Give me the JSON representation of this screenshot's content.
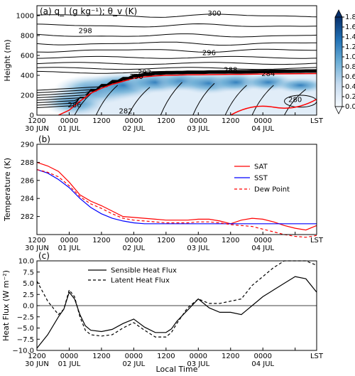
{
  "chart_data": [
    {
      "type": "heatmap",
      "panel": "a",
      "title": "(a) q_l (g kg⁻¹); θ_v (K)",
      "ylabel": "Height (m)",
      "ylim": [
        0,
        1100
      ],
      "yticks": [
        0,
        200,
        400,
        600,
        800,
        1000
      ],
      "xlim": [
        0,
        104
      ],
      "xtick_positions": [
        0,
        12,
        24,
        36,
        48,
        60,
        72,
        84,
        96,
        104
      ],
      "xtick_labels": [
        "1200\n30 JUN",
        "0000\n01 JUL",
        "1200",
        "0000\n02 JUL",
        "1200",
        "0000\n03 JUL",
        "1200",
        "0000\n04 JUL",
        "",
        "LST"
      ],
      "colorbar_ticks": [
        "0.0",
        "0.2",
        "0.4",
        "0.6",
        "0.8",
        "1.0",
        "1.2",
        "1.4",
        "1.6",
        "1.8"
      ],
      "colorbar_range": [
        0,
        1.8
      ],
      "contour_labels": [
        {
          "text": "300",
          "x": 66,
          "y": 1020
        },
        {
          "text": "298",
          "x": 18,
          "y": 845
        },
        {
          "text": "296",
          "x": 64,
          "y": 625
        },
        {
          "text": "292",
          "x": 40,
          "y": 430
        },
        {
          "text": "290",
          "x": 37,
          "y": 385
        },
        {
          "text": "288",
          "x": 72,
          "y": 455
        },
        {
          "text": "284",
          "x": 86,
          "y": 415
        },
        {
          "text": "286",
          "x": 14,
          "y": 100
        },
        {
          "text": "282",
          "x": 33,
          "y": 40
        },
        {
          "text": "280",
          "x": 96,
          "y": 155
        }
      ],
      "inversion_height_m": {
        "x": [
          8,
          12,
          16,
          20,
          24,
          28,
          32,
          36,
          40,
          44,
          48,
          52,
          56,
          60,
          64,
          68,
          72,
          76,
          80,
          84,
          88,
          92,
          96,
          100,
          104
        ],
        "y": [
          0,
          50,
          140,
          220,
          270,
          310,
          340,
          370,
          385,
          395,
          400,
          402,
          405,
          405,
          407,
          408,
          410,
          410,
          412,
          413,
          414,
          415,
          416,
          417,
          418
        ]
      }
    },
    {
      "type": "line",
      "panel": "b",
      "title": "(b)",
      "ylabel": "Temperature (K)",
      "ylim": [
        280,
        290
      ],
      "yticks": [
        282,
        284,
        286,
        288,
        290
      ],
      "xlim": [
        0,
        104
      ],
      "x": [
        0,
        4,
        8,
        12,
        16,
        20,
        24,
        28,
        32,
        36,
        40,
        44,
        48,
        52,
        56,
        60,
        64,
        68,
        72,
        76,
        80,
        84,
        88,
        92,
        96,
        100,
        104
      ],
      "series": [
        {
          "name": "SAT",
          "color": "#ff0000",
          "dash": "solid",
          "values": [
            288.0,
            287.6,
            287.0,
            285.8,
            284.4,
            283.7,
            283.2,
            282.6,
            282.0,
            281.9,
            281.8,
            281.7,
            281.6,
            281.6,
            281.6,
            281.7,
            281.7,
            281.5,
            281.2,
            281.6,
            281.8,
            281.7,
            281.4,
            281.0,
            280.7,
            280.5,
            281.0
          ]
        },
        {
          "name": "SST",
          "color": "#0000ff",
          "dash": "solid",
          "values": [
            287.2,
            286.8,
            286.1,
            285.2,
            284.0,
            283.0,
            282.3,
            281.8,
            281.5,
            281.3,
            281.2,
            281.2,
            281.2,
            281.2,
            281.2,
            281.2,
            281.2,
            281.2,
            281.2,
            281.2,
            281.2,
            281.2,
            281.2,
            281.2,
            281.2,
            281.2,
            281.2
          ]
        },
        {
          "name": "Dew Point",
          "color": "#ff0000",
          "dash": "dashed",
          "values": [
            287.2,
            286.9,
            286.4,
            285.4,
            284.2,
            283.4,
            282.9,
            282.3,
            281.8,
            281.6,
            281.5,
            281.4,
            281.3,
            281.3,
            281.3,
            281.4,
            281.4,
            281.3,
            281.1,
            281.0,
            280.9,
            280.6,
            280.3,
            280.0,
            279.8,
            279.7,
            279.9
          ]
        }
      ],
      "legend": "upper right"
    },
    {
      "type": "line",
      "panel": "c",
      "title": "(c)",
      "ylabel": "Heat Flux (W m⁻²)",
      "xlabel": "Local Time",
      "ylim": [
        -10,
        10
      ],
      "yticks": [
        -10.0,
        -7.5,
        -5.0,
        -2.5,
        0.0,
        2.5,
        5.0,
        7.5,
        10.0
      ],
      "ytick_labels": [
        "−10.0",
        "−7.5",
        "−5.0",
        "−2.5",
        "0.0",
        "2.5",
        "5.0",
        "7.5",
        "10.0"
      ],
      "xlim": [
        0,
        104
      ],
      "x": [
        0,
        4,
        8,
        10,
        12,
        14,
        16,
        18,
        20,
        24,
        28,
        32,
        36,
        40,
        44,
        48,
        50,
        52,
        56,
        60,
        64,
        68,
        72,
        76,
        78,
        80,
        84,
        88,
        92,
        96,
        100,
        104
      ],
      "series": [
        {
          "name": "Sensible Heat Flux",
          "color": "#000000",
          "dash": "solid",
          "values": [
            -9.5,
            -6.5,
            -2.5,
            -0.8,
            3.0,
            1.5,
            -2.0,
            -4.5,
            -5.5,
            -5.8,
            -5.3,
            -4.0,
            -3.0,
            -4.8,
            -6.0,
            -6.0,
            -5.2,
            -3.5,
            -1.0,
            1.5,
            -0.5,
            -1.5,
            -1.5,
            -2.0,
            -1.0,
            0.0,
            2.0,
            3.5,
            5.0,
            6.5,
            6.0,
            3.0
          ]
        },
        {
          "name": "Latent Heat Flux",
          "color": "#000000",
          "dash": "dashed",
          "values": [
            5.5,
            1.0,
            -2.0,
            -0.8,
            3.5,
            2.0,
            -2.5,
            -5.5,
            -6.5,
            -6.8,
            -6.5,
            -5.0,
            -3.8,
            -5.5,
            -7.0,
            -7.0,
            -6.0,
            -4.0,
            -0.5,
            1.5,
            0.5,
            0.5,
            1.0,
            1.5,
            3.0,
            4.5,
            6.5,
            8.5,
            10.0,
            10.5,
            10.0,
            9.0
          ]
        }
      ],
      "legend": "upper left"
    }
  ]
}
